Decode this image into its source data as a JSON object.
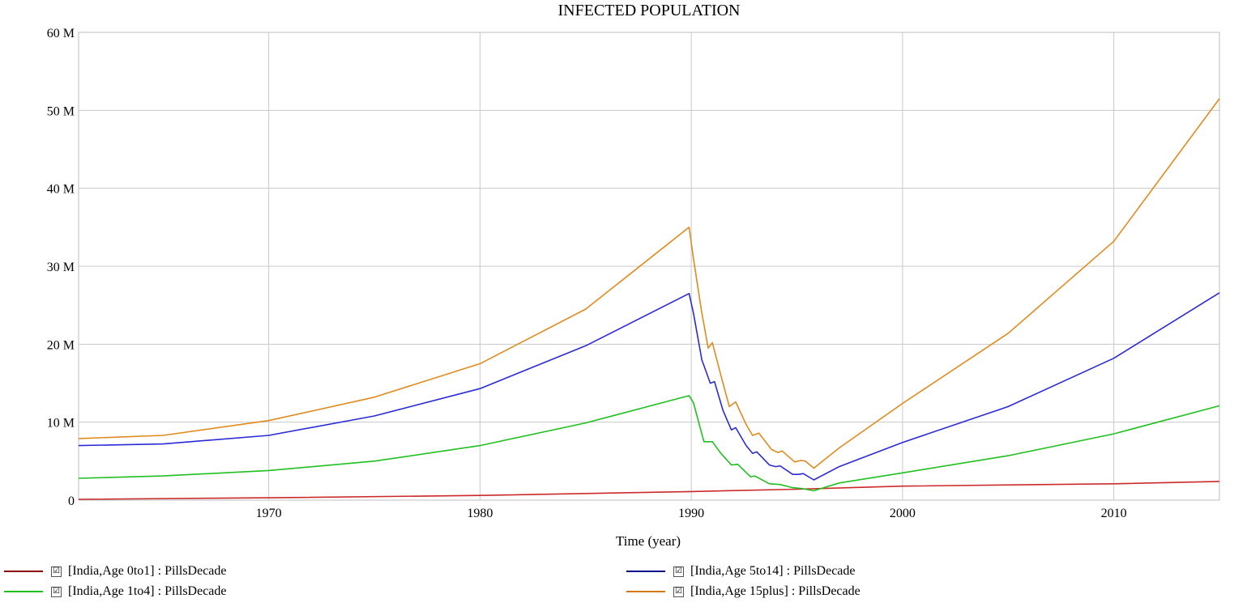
{
  "chart_data": {
    "type": "line",
    "title": "INFECTED POPULATION",
    "xlabel": "Time (year)",
    "ylabel": "",
    "xlim": [
      1961,
      2015
    ],
    "ylim": [
      0,
      60000000
    ],
    "grid": true,
    "legend_position": "bottom",
    "x_ticks": [
      1970,
      1980,
      1990,
      2000,
      2010
    ],
    "x_tick_labels": [
      "1970",
      "1980",
      "1990",
      "2000",
      "2010"
    ],
    "y_ticks": [
      0,
      10000000,
      20000000,
      30000000,
      40000000,
      50000000,
      60000000
    ],
    "y_tick_labels": [
      "0",
      "10 M",
      "20 M",
      "30 M",
      "40 M",
      "50 M",
      "60 M"
    ],
    "series": [
      {
        "name": "[India,Age 0to1] : PillsDecade",
        "color": "#cc2a2a",
        "legend_color": "#8b0000",
        "points": [
          [
            1961,
            100000
          ],
          [
            1970,
            300000
          ],
          [
            1980,
            600000
          ],
          [
            1990,
            1100000
          ],
          [
            1995,
            1400000
          ],
          [
            2000,
            1800000
          ],
          [
            2010,
            2100000
          ],
          [
            2015,
            2400000
          ]
        ]
      },
      {
        "name": "[India,Age 1to4] : PillsDecade",
        "color": "#20c020",
        "legend_color": "#20c020",
        "points": [
          [
            1961,
            2800000
          ],
          [
            1965,
            3100000
          ],
          [
            1970,
            3800000
          ],
          [
            1975,
            5000000
          ],
          [
            1980,
            7000000
          ],
          [
            1985,
            9900000
          ],
          [
            1989.9,
            13400000
          ],
          [
            1990.1,
            12500000
          ],
          [
            1990.6,
            7500000
          ],
          [
            1991.0,
            7500000
          ],
          [
            1991.4,
            6000000
          ],
          [
            1991.9,
            4500000
          ],
          [
            1992.2,
            4600000
          ],
          [
            1992.8,
            3000000
          ],
          [
            1993.0,
            3100000
          ],
          [
            1993.7,
            2100000
          ],
          [
            1994.2,
            2000000
          ],
          [
            1994.8,
            1600000
          ],
          [
            1995.2,
            1500000
          ],
          [
            1995.8,
            1200000
          ],
          [
            1997,
            2200000
          ],
          [
            2000,
            3500000
          ],
          [
            2005,
            5700000
          ],
          [
            2010,
            8500000
          ],
          [
            2015,
            12100000
          ]
        ]
      },
      {
        "name": "[India,Age 5to14] : PillsDecade",
        "color": "#2a2ad6",
        "legend_color": "#00008b",
        "points": [
          [
            1961,
            7000000
          ],
          [
            1965,
            7200000
          ],
          [
            1970,
            8300000
          ],
          [
            1975,
            10800000
          ],
          [
            1980,
            14300000
          ],
          [
            1985,
            19800000
          ],
          [
            1989.9,
            26500000
          ],
          [
            1990.1,
            24000000
          ],
          [
            1990.5,
            18000000
          ],
          [
            1990.9,
            15000000
          ],
          [
            1991.1,
            15200000
          ],
          [
            1991.5,
            11500000
          ],
          [
            1991.9,
            9000000
          ],
          [
            1992.1,
            9300000
          ],
          [
            1992.6,
            7000000
          ],
          [
            1992.9,
            6000000
          ],
          [
            1993.1,
            6200000
          ],
          [
            1993.7,
            4500000
          ],
          [
            1994.0,
            4300000
          ],
          [
            1994.2,
            4400000
          ],
          [
            1994.8,
            3300000
          ],
          [
            1995.1,
            3300000
          ],
          [
            1995.3,
            3400000
          ],
          [
            1995.8,
            2600000
          ],
          [
            1997,
            4300000
          ],
          [
            2000,
            7400000
          ],
          [
            2005,
            12000000
          ],
          [
            2010,
            18200000
          ],
          [
            2015,
            26600000
          ]
        ]
      },
      {
        "name": "[India,Age 15plus] : PillsDecade",
        "color": "#e08a1e",
        "legend_color": "#d27a10",
        "points": [
          [
            1961,
            7900000
          ],
          [
            1965,
            8300000
          ],
          [
            1970,
            10200000
          ],
          [
            1975,
            13200000
          ],
          [
            1980,
            17500000
          ],
          [
            1985,
            24500000
          ],
          [
            1989.9,
            35000000
          ],
          [
            1990.1,
            31000000
          ],
          [
            1990.5,
            24000000
          ],
          [
            1990.8,
            19500000
          ],
          [
            1991.0,
            20200000
          ],
          [
            1991.4,
            16000000
          ],
          [
            1991.8,
            12000000
          ],
          [
            1992.1,
            12600000
          ],
          [
            1992.6,
            9700000
          ],
          [
            1992.9,
            8300000
          ],
          [
            1993.2,
            8600000
          ],
          [
            1993.8,
            6500000
          ],
          [
            1994.1,
            6100000
          ],
          [
            1994.3,
            6300000
          ],
          [
            1994.9,
            4900000
          ],
          [
            1995.2,
            5100000
          ],
          [
            1995.4,
            5000000
          ],
          [
            1995.8,
            4100000
          ],
          [
            1997,
            6700000
          ],
          [
            2000,
            12400000
          ],
          [
            2005,
            21400000
          ],
          [
            2010,
            33200000
          ],
          [
            2015,
            51500000
          ]
        ]
      }
    ]
  },
  "legend": {
    "check_glyph": "☑"
  }
}
